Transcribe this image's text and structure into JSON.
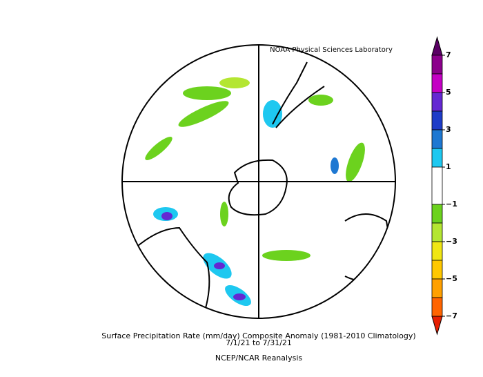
{
  "header": {
    "credit": "NOAA Physical Sciences Laboratory"
  },
  "footer": {
    "title": "Surface Precipitation Rate (mm/day) Composite Anomaly (1981-2010 Climatology)",
    "period": "7/1/21  to 7/31/21",
    "source": "NCEP/NCAR Reanalysis"
  },
  "colorbar": {
    "range": [
      -7,
      7
    ],
    "over_color": "#5a0064",
    "under_color": "#e61e00",
    "bands": [
      {
        "from": 6,
        "to": 7,
        "color": "#8b008b"
      },
      {
        "from": 5,
        "to": 6,
        "color": "#c400c4"
      },
      {
        "from": 4,
        "to": 5,
        "color": "#6428d2"
      },
      {
        "from": 3,
        "to": 4,
        "color": "#1e3cc8"
      },
      {
        "from": 2,
        "to": 3,
        "color": "#1e78d2"
      },
      {
        "from": 1,
        "to": 2,
        "color": "#1ec8f0"
      },
      {
        "from": -1,
        "to": 1,
        "color": "#ffffff"
      },
      {
        "from": -2,
        "to": -1,
        "color": "#6cd21e"
      },
      {
        "from": -3,
        "to": -2,
        "color": "#b4e632"
      },
      {
        "from": -4,
        "to": -3,
        "color": "#f0e614"
      },
      {
        "from": -5,
        "to": -4,
        "color": "#ffc800"
      },
      {
        "from": -6,
        "to": -5,
        "color": "#ffa000"
      },
      {
        "from": -7,
        "to": -6,
        "color": "#ff6400"
      }
    ],
    "ticks": [
      7,
      5,
      3,
      1,
      {
        "value": -1,
        "label": "−1"
      },
      {
        "value": -3,
        "label": "−3"
      },
      {
        "value": -5,
        "label": "−5"
      },
      {
        "value": -7,
        "label": "−7"
      }
    ]
  }
}
